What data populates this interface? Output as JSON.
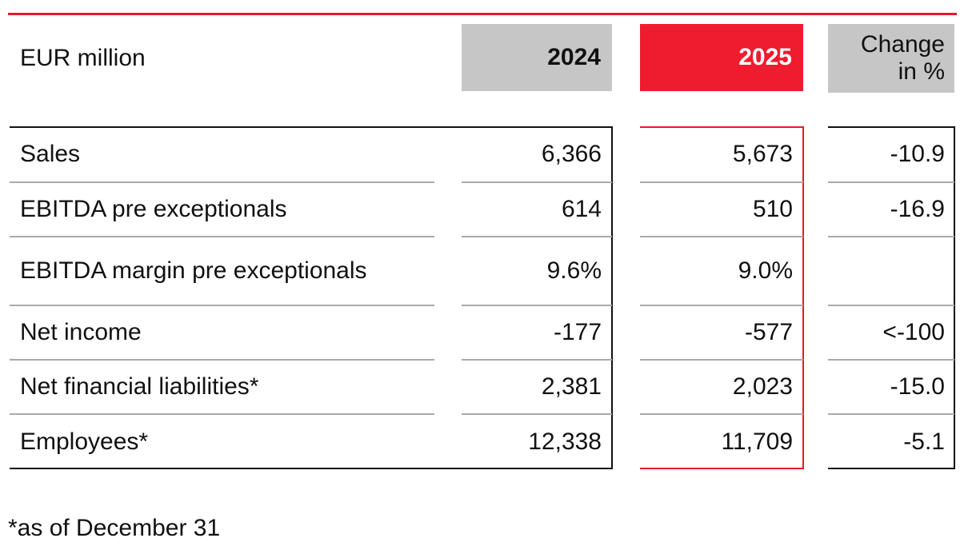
{
  "header": {
    "unit_label": "EUR million",
    "col_2024": "2024",
    "col_2025": "2025",
    "col_change_line1": "Change",
    "col_change_line2": "in %"
  },
  "colors": {
    "accent_red": "#ee1c2e",
    "header_gray": "#c6c6c6"
  },
  "rows": [
    {
      "label": "Sales",
      "v2024": "6,366",
      "v2025": "5,673",
      "change": "-10.9"
    },
    {
      "label": "EBITDA pre exceptionals",
      "v2024": "614",
      "v2025": "510",
      "change": "-16.9"
    },
    {
      "label": "EBITDA margin pre exceptionals",
      "v2024": "9.6%",
      "v2025": "9.0%",
      "change": ""
    },
    {
      "label": "Net income",
      "v2024": "-177",
      "v2025": "-577",
      "change": "<-100"
    },
    {
      "label": "Net financial liabilities*",
      "v2024": "2,381",
      "v2025": "2,023",
      "change": "-15.0"
    },
    {
      "label": "Employees*",
      "v2024": "12,338",
      "v2025": "11,709",
      "change": "-5.1"
    }
  ],
  "footnote": "*as of December 31"
}
